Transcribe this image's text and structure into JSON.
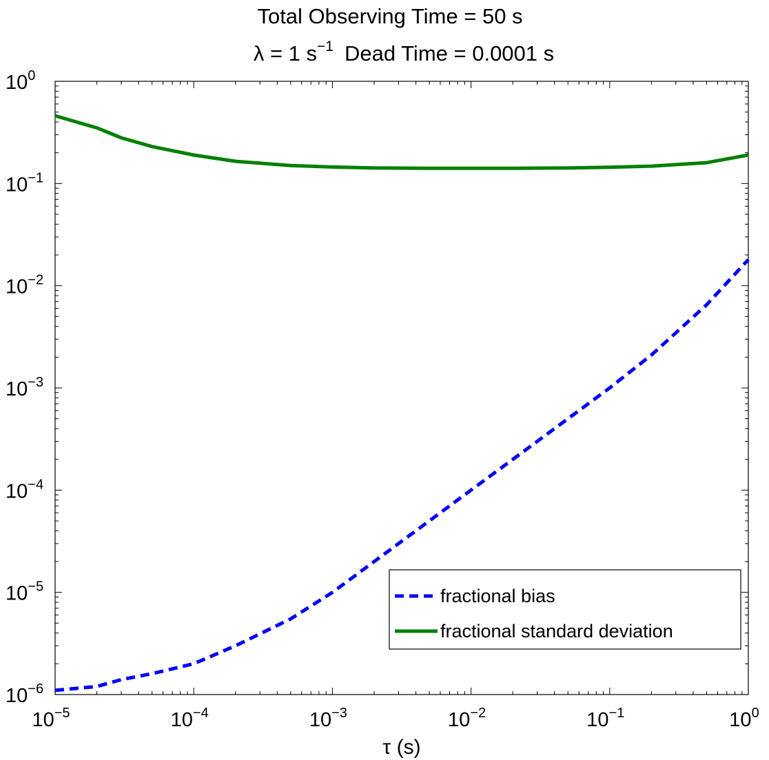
{
  "chart_data": {
    "type": "line",
    "title_line1": "Total Observing Time = 50 s",
    "title_line2": {
      "lambda_symbol": "λ",
      "lambda_text": " = 1 s",
      "lambda_exponent": "−1",
      "dead_time_text": "Dead Time = 0.0001 s"
    },
    "xlabel": "τ (s)",
    "ylabel": "",
    "xscale": "log",
    "yscale": "log",
    "xlim": [
      1e-05,
      1
    ],
    "ylim": [
      1e-06,
      1
    ],
    "grid": false,
    "legend_position": "bottom-right",
    "x_ticks": [
      {
        "base": "10",
        "exp": "−5",
        "value": 1e-05
      },
      {
        "base": "10",
        "exp": "−4",
        "value": 0.0001
      },
      {
        "base": "10",
        "exp": "−3",
        "value": 0.001
      },
      {
        "base": "10",
        "exp": "−2",
        "value": 0.01
      },
      {
        "base": "10",
        "exp": "−1",
        "value": 0.1
      },
      {
        "base": "10",
        "exp": "0",
        "value": 1
      }
    ],
    "y_ticks": [
      {
        "base": "10",
        "exp": "−6",
        "value": 1e-06
      },
      {
        "base": "10",
        "exp": "−5",
        "value": 1e-05
      },
      {
        "base": "10",
        "exp": "−4",
        "value": 0.0001
      },
      {
        "base": "10",
        "exp": "−3",
        "value": 0.001
      },
      {
        "base": "10",
        "exp": "−2",
        "value": 0.01
      },
      {
        "base": "10",
        "exp": "−1",
        "value": 0.1
      },
      {
        "base": "10",
        "exp": "0",
        "value": 1
      }
    ],
    "series": [
      {
        "name": "fractional bias",
        "color": "#0000ff",
        "style": "dashed",
        "x": [
          1e-05,
          2e-05,
          3e-05,
          5e-05,
          0.0001,
          0.0002,
          0.0005,
          0.001,
          0.002,
          0.005,
          0.01,
          0.02,
          0.05,
          0.1,
          0.2,
          0.5,
          1
        ],
        "y": [
          1.1e-06,
          1.2e-06,
          1.4e-06,
          1.6e-06,
          2e-06,
          3e-06,
          5.5e-06,
          1e-05,
          2e-05,
          5e-05,
          0.0001,
          0.0002,
          0.0005,
          0.001,
          0.0021,
          0.0065,
          0.018
        ]
      },
      {
        "name": "fractional standard deviation",
        "color": "#008000",
        "style": "solid",
        "x": [
          1e-05,
          2e-05,
          3e-05,
          5e-05,
          0.0001,
          0.0002,
          0.0005,
          0.001,
          0.002,
          0.005,
          0.01,
          0.02,
          0.05,
          0.1,
          0.2,
          0.5,
          1
        ],
        "y": [
          0.46,
          0.35,
          0.28,
          0.23,
          0.19,
          0.165,
          0.15,
          0.145,
          0.142,
          0.141,
          0.141,
          0.141,
          0.142,
          0.144,
          0.148,
          0.16,
          0.19
        ]
      }
    ]
  }
}
